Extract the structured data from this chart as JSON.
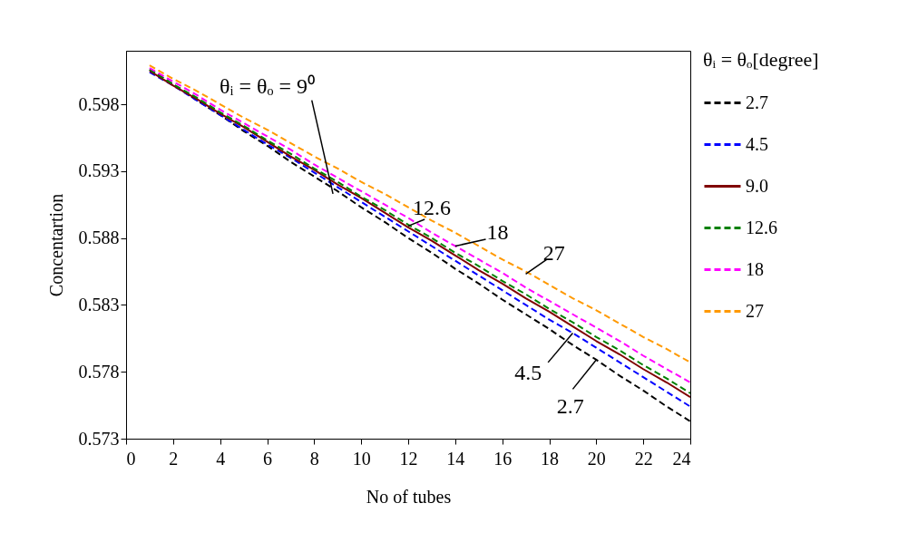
{
  "chart_data": {
    "type": "line",
    "xlabel": "No of tubes",
    "ylabel": "Concentartion",
    "legend_title": "θᵢ = θₒ[degree]",
    "legend": "top right",
    "grid": false,
    "marker": "none",
    "x": [
      1,
      2,
      3,
      4,
      5,
      6,
      7,
      8,
      9,
      10,
      11,
      12,
      13,
      14,
      15,
      16,
      17,
      18,
      19,
      20,
      21,
      22,
      23,
      24
    ],
    "xlim": [
      0,
      24
    ],
    "xticks": [
      0,
      2,
      4,
      6,
      8,
      10,
      12,
      14,
      16,
      18,
      20,
      22,
      24
    ],
    "ylim": [
      0.573,
      0.602
    ],
    "yticks": [
      0.573,
      0.578,
      0.583,
      0.588,
      0.593,
      0.598
    ],
    "series": [
      {
        "name": "2.7",
        "color": "#000000",
        "line_style": "dashed",
        "values": [
          0.6006,
          0.5995,
          0.5983,
          0.5972,
          0.596,
          0.5949,
          0.5937,
          0.5926,
          0.5915,
          0.5903,
          0.5892,
          0.588,
          0.5869,
          0.5857,
          0.5846,
          0.5834,
          0.5823,
          0.5812,
          0.58,
          0.5789,
          0.5777,
          0.5766,
          0.5754,
          0.5743
        ]
      },
      {
        "name": "4.5",
        "color": "#0000ff",
        "line_style": "dashed",
        "values": [
          0.6004,
          0.5994,
          0.5983,
          0.5972,
          0.5961,
          0.595,
          0.594,
          0.5929,
          0.5918,
          0.5907,
          0.5896,
          0.5885,
          0.5874,
          0.5863,
          0.5852,
          0.5841,
          0.583,
          0.5819,
          0.5809,
          0.5798,
          0.5787,
          0.5776,
          0.5765,
          0.5754
        ]
      },
      {
        "name": "9.0",
        "color": "#800000",
        "line_style": "solid",
        "values": [
          0.6005,
          0.5994,
          0.5984,
          0.5973,
          0.5963,
          0.5952,
          0.5941,
          0.5931,
          0.592,
          0.591,
          0.5899,
          0.5888,
          0.5878,
          0.5867,
          0.5856,
          0.5846,
          0.5835,
          0.5825,
          0.5814,
          0.5803,
          0.5793,
          0.5782,
          0.5772,
          0.5761
        ]
      },
      {
        "name": "12.6",
        "color": "#008000",
        "line_style": "dashed",
        "values": [
          0.6006,
          0.5995,
          0.5985,
          0.5974,
          0.5964,
          0.5953,
          0.5943,
          0.5932,
          0.5922,
          0.5911,
          0.5901,
          0.589,
          0.588,
          0.5869,
          0.5859,
          0.5848,
          0.5838,
          0.5827,
          0.5817,
          0.5806,
          0.5796,
          0.5785,
          0.5775,
          0.5764
        ]
      },
      {
        "name": "18",
        "color": "#ff00ff",
        "line_style": "dashed",
        "values": [
          0.6007,
          0.5997,
          0.5987,
          0.5976,
          0.5966,
          0.5956,
          0.5946,
          0.5935,
          0.5925,
          0.5915,
          0.5905,
          0.5895,
          0.5884,
          0.5874,
          0.5864,
          0.5854,
          0.5843,
          0.5833,
          0.5823,
          0.5813,
          0.5803,
          0.5792,
          0.5782,
          0.5772
        ]
      },
      {
        "name": "27",
        "color": "#ff9900",
        "line_style": "dashed",
        "values": [
          0.6009,
          0.5999,
          0.599,
          0.598,
          0.597,
          0.5961,
          0.5951,
          0.5941,
          0.5932,
          0.5922,
          0.5913,
          0.5903,
          0.5893,
          0.5884,
          0.5874,
          0.5864,
          0.5855,
          0.5845,
          0.5835,
          0.5826,
          0.5816,
          0.5806,
          0.5797,
          0.5787
        ]
      }
    ],
    "annotations": [
      {
        "text": "θᵢ = θₒ = 9⁰",
        "x": 8.8,
        "y": 0.5913
      },
      {
        "text": "12.6",
        "x": 12,
        "y": 0.5889
      },
      {
        "text": "18",
        "x": 14,
        "y": 0.5874
      },
      {
        "text": "27",
        "x": 17,
        "y": 0.5853
      },
      {
        "text": "4.5",
        "x": 19,
        "y": 0.5809
      },
      {
        "text": "2.7",
        "x": 20,
        "y": 0.5789
      }
    ]
  }
}
